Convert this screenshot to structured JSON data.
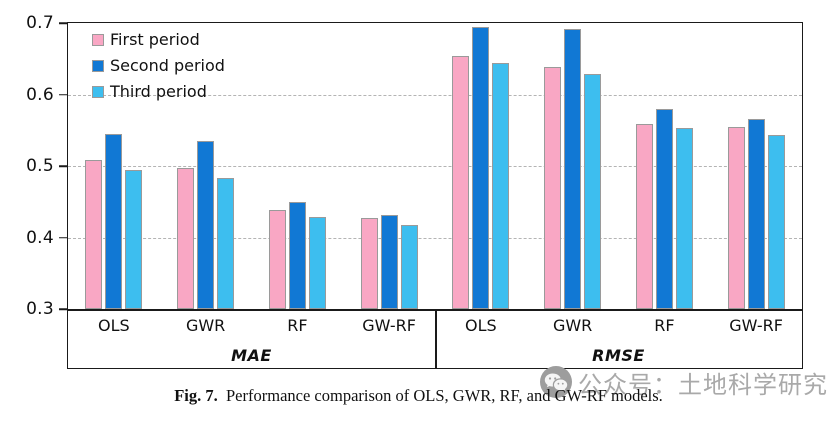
{
  "chart": {
    "y_ticks": [
      "0.7",
      "0.6",
      "0.5",
      "0.4",
      "0.3"
    ]
  },
  "legend": {
    "items": [
      {
        "label": "First period",
        "color": "#F9A7C4"
      },
      {
        "label": "Second period",
        "color": "#1178D4"
      },
      {
        "label": "Third period",
        "color": "#3DBEEF"
      }
    ]
  },
  "chart_data": {
    "type": "bar",
    "title": "",
    "ylim": [
      0.3,
      0.7
    ],
    "y_tick_step": 0.1,
    "grid": "horizontal-dashed",
    "legend_position": "top-left",
    "categories": [
      "OLS",
      "GWR",
      "RF",
      "GW-RF"
    ],
    "panels": [
      {
        "label": "MAE",
        "categories": [
          "OLS",
          "GWR",
          "RF",
          "GW-RF"
        ],
        "series": [
          {
            "name": "First period",
            "values": [
              0.508,
              0.497,
              0.439,
              0.427
            ]
          },
          {
            "name": "Second period",
            "values": [
              0.545,
              0.535,
              0.449,
              0.431
            ]
          },
          {
            "name": "Third period",
            "values": [
              0.495,
              0.483,
              0.429,
              0.417
            ]
          }
        ]
      },
      {
        "label": "RMSE",
        "categories": [
          "OLS",
          "GWR",
          "RF",
          "GW-RF"
        ],
        "series": [
          {
            "name": "First period",
            "values": [
              0.654,
              0.639,
              0.559,
              0.555
            ]
          },
          {
            "name": "Second period",
            "values": [
              0.695,
              0.691,
              0.58,
              0.566
            ]
          },
          {
            "name": "Third period",
            "values": [
              0.644,
              0.628,
              0.553,
              0.543
            ]
          }
        ]
      }
    ]
  },
  "colors": {
    "bar_outline": "#9a9a9a",
    "grid": "#b4b4b4",
    "axis": "#1a1a1a"
  },
  "caption": {
    "prefix": "Fig. 7.",
    "text": " Performance comparison of OLS, GWR, RF, and GW-RF models."
  },
  "watermark": {
    "icon": "wechat-icon",
    "text": "公众号：土地科学研究"
  }
}
